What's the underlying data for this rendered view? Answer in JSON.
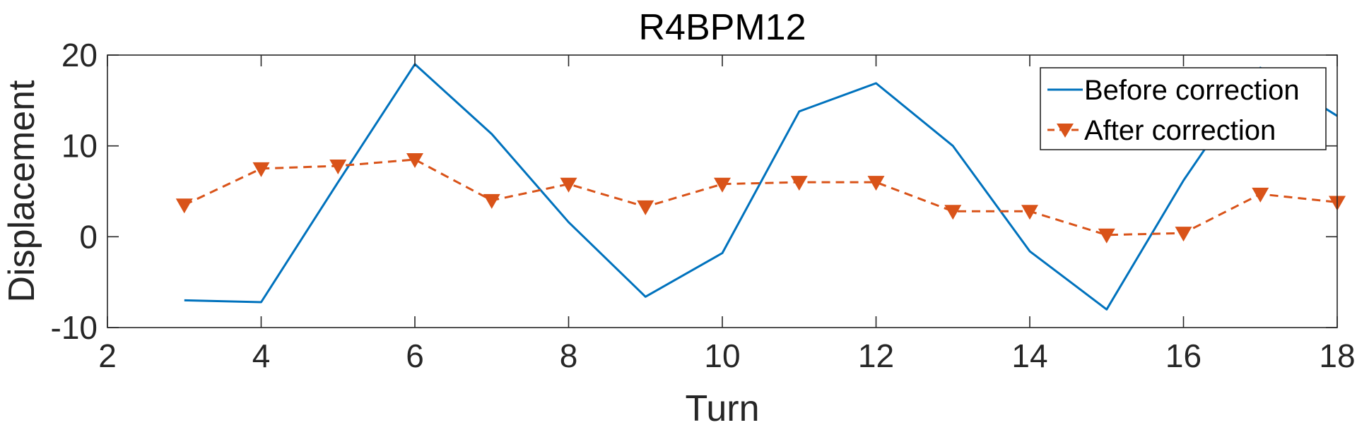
{
  "chart_data": {
    "type": "line",
    "title": "R4BPM12",
    "xlabel": "Turn",
    "ylabel": "Displacement",
    "xlim": [
      2,
      18
    ],
    "ylim": [
      -10,
      20
    ],
    "xticks": [
      2,
      4,
      6,
      8,
      10,
      12,
      14,
      16,
      18
    ],
    "yticks": [
      -10,
      0,
      10,
      20
    ],
    "xtick_labels": [
      "2",
      "4",
      "6",
      "8",
      "10",
      "12",
      "14",
      "16",
      "18"
    ],
    "ytick_labels": [
      "-10",
      "0",
      "10",
      "20"
    ],
    "grid": false,
    "legend_position": "top-right",
    "series": [
      {
        "name": "Before correction",
        "color": "#0072BD",
        "line_style": "solid",
        "marker": "none",
        "x": [
          3,
          4,
          5,
          6,
          7,
          8,
          9,
          10,
          11,
          12,
          13,
          14,
          15,
          16,
          17,
          18
        ],
        "y": [
          -7.0,
          -7.2,
          6.0,
          19.0,
          11.3,
          1.6,
          -6.6,
          -1.8,
          13.8,
          16.9,
          10.0,
          -1.6,
          -8.0,
          6.2,
          18.6,
          13.3
        ]
      },
      {
        "name": "After correction",
        "color": "#D95319",
        "line_style": "dashed",
        "marker": "triangle-down",
        "x": [
          3,
          4,
          5,
          6,
          7,
          8,
          9,
          10,
          11,
          12,
          13,
          14,
          15,
          16,
          17,
          18
        ],
        "y": [
          3.5,
          7.5,
          7.8,
          8.5,
          4.0,
          5.8,
          3.3,
          5.8,
          6.0,
          6.0,
          2.8,
          2.8,
          0.2,
          0.4,
          4.7,
          3.8
        ]
      }
    ]
  }
}
